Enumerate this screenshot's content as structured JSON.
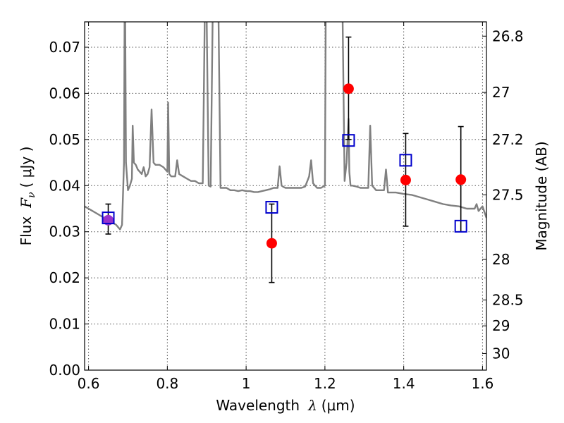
{
  "chart_data": {
    "type": "scatter",
    "xlabel": {
      "prefix": "Wavelength",
      "symbol": "λ",
      "unit": "(μm)"
    },
    "ylabel": {
      "prefix": "Flux",
      "symbol": "F",
      "subscript": "ν",
      "unit": "( μJy )"
    },
    "y2label": "Magnitude (AB)",
    "xlim": [
      0.59,
      1.61
    ],
    "ylim": [
      0.0,
      0.0755
    ],
    "grid": true,
    "x_ticks": [
      0.6,
      0.8,
      1.0,
      1.2,
      1.4,
      1.6
    ],
    "x_tick_labels": [
      "0.6",
      "0.8",
      "1",
      "1.2",
      "1.4",
      "1.6"
    ],
    "y_ticks": [
      0.0,
      0.01,
      0.02,
      0.03,
      0.04,
      0.05,
      0.06,
      0.07
    ],
    "y_tick_labels": [
      "0.00",
      "0.01",
      "0.02",
      "0.03",
      "0.04",
      "0.05",
      "0.06",
      "0.07"
    ],
    "y2_ticks": [
      {
        "label": "26.8",
        "flux": 0.0724
      },
      {
        "label": "27",
        "flux": 0.0602
      },
      {
        "label": "27.2",
        "flux": 0.05
      },
      {
        "label": "27.5",
        "flux": 0.038
      },
      {
        "label": "28",
        "flux": 0.024
      },
      {
        "label": "28.5",
        "flux": 0.0152
      },
      {
        "label": "29",
        "flux": 0.0096
      },
      {
        "label": "30",
        "flux": 0.0036
      }
    ],
    "colors": {
      "model": "#808080",
      "observed": "#ff0000",
      "model_photometry": "#0000cc",
      "overlap": "#9933cc",
      "errorbar": "#000000",
      "grid": "#555555"
    },
    "series": [
      {
        "type": "line",
        "x": [
          0.59,
          0.6,
          0.62,
          0.64,
          0.66,
          0.67,
          0.675,
          0.68,
          0.685,
          0.69,
          0.6915,
          0.693,
          0.695,
          0.7,
          0.705,
          0.71,
          0.712,
          0.715,
          0.72,
          0.725,
          0.73,
          0.735,
          0.74,
          0.745,
          0.75,
          0.755,
          0.76,
          0.765,
          0.77,
          0.78,
          0.79,
          0.8,
          0.802,
          0.805,
          0.81,
          0.82,
          0.825,
          0.83,
          0.84,
          0.85,
          0.86,
          0.87,
          0.88,
          0.89,
          0.895,
          0.9,
          0.905,
          0.91,
          0.915,
          0.92,
          0.925,
          0.93,
          0.935,
          0.94,
          0.95,
          0.96,
          0.97,
          0.98,
          0.99,
          1.0,
          1.01,
          1.02,
          1.03,
          1.04,
          1.05,
          1.06,
          1.07,
          1.08,
          1.085,
          1.09,
          1.095,
          1.1,
          1.12,
          1.14,
          1.15,
          1.16,
          1.165,
          1.17,
          1.18,
          1.19,
          1.2,
          1.202,
          1.205,
          1.21,
          1.22,
          1.23,
          1.24,
          1.245,
          1.25,
          1.255,
          1.26,
          1.262,
          1.265,
          1.27,
          1.28,
          1.29,
          1.3,
          1.31,
          1.315,
          1.32,
          1.33,
          1.34,
          1.35,
          1.355,
          1.36,
          1.38,
          1.4,
          1.42,
          1.44,
          1.46,
          1.48,
          1.5,
          1.52,
          1.54,
          1.56,
          1.58,
          1.585,
          1.59,
          1.6,
          1.61
        ],
        "y": [
          0.0355,
          0.035,
          0.034,
          0.033,
          0.032,
          0.0315,
          0.031,
          0.0305,
          0.0315,
          0.045,
          0.076,
          0.076,
          0.045,
          0.039,
          0.04,
          0.0415,
          0.053,
          0.045,
          0.0445,
          0.0435,
          0.043,
          0.0425,
          0.044,
          0.042,
          0.0425,
          0.044,
          0.0565,
          0.045,
          0.0445,
          0.0445,
          0.044,
          0.043,
          0.058,
          0.0425,
          0.042,
          0.042,
          0.0455,
          0.0425,
          0.042,
          0.0415,
          0.041,
          0.041,
          0.0405,
          0.0405,
          0.076,
          0.076,
          0.04,
          0.0398,
          0.076,
          0.076,
          0.076,
          0.076,
          0.0395,
          0.0395,
          0.0395,
          0.039,
          0.039,
          0.0388,
          0.039,
          0.0388,
          0.0388,
          0.0386,
          0.0386,
          0.0388,
          0.039,
          0.0392,
          0.0395,
          0.0395,
          0.0442,
          0.04,
          0.0397,
          0.0395,
          0.0395,
          0.0395,
          0.0398,
          0.042,
          0.0455,
          0.0405,
          0.0395,
          0.0395,
          0.04,
          0.076,
          0.076,
          0.076,
          0.076,
          0.076,
          0.076,
          0.076,
          0.041,
          0.045,
          0.0545,
          0.043,
          0.04,
          0.04,
          0.0398,
          0.0395,
          0.0395,
          0.0395,
          0.053,
          0.04,
          0.039,
          0.039,
          0.039,
          0.0435,
          0.0385,
          0.0385,
          0.0382,
          0.038,
          0.0375,
          0.037,
          0.0365,
          0.036,
          0.0357,
          0.0355,
          0.035,
          0.035,
          0.036,
          0.0345,
          0.0355,
          0.033
        ]
      },
      {
        "type": "errorbar",
        "marker": "circle",
        "x": [
          0.65,
          1.065,
          1.26,
          1.405,
          1.545
        ],
        "y": [
          0.0325,
          0.0275,
          0.061,
          0.0412,
          0.0413
        ],
        "yerr_low": [
          0.003,
          0.0085,
          0.011,
          0.01,
          0.0113
        ],
        "yerr_high": [
          0.0035,
          0.0085,
          0.0112,
          0.0101,
          0.0115
        ]
      },
      {
        "type": "scatter",
        "marker": "square-open",
        "x": [
          0.65,
          1.065,
          1.26,
          1.405,
          1.545
        ],
        "y": [
          0.033,
          0.0353,
          0.0498,
          0.0455,
          0.0312
        ]
      }
    ]
  }
}
